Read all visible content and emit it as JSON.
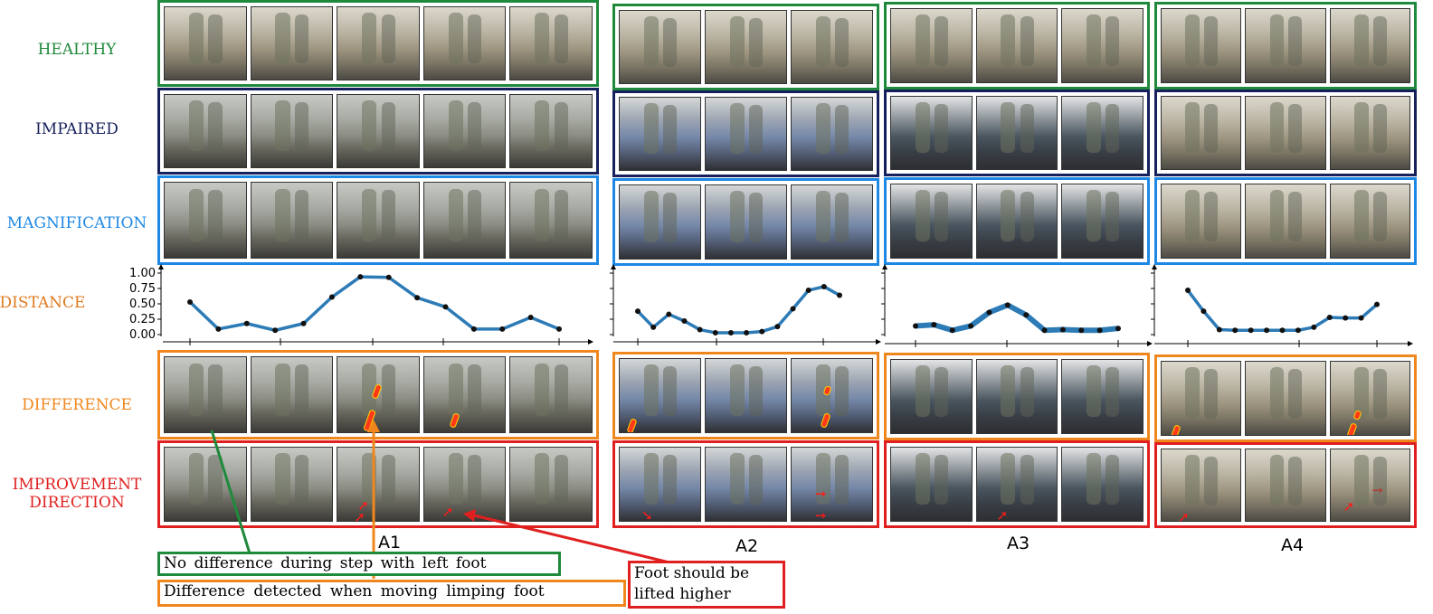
{
  "row_labels": {
    "healthy": "HEALTHY",
    "impaired": "IMPAIRED",
    "magnification": "MAGNIFICATION",
    "distance": "DISTANCE",
    "difference": "DIFFERENCE",
    "improvement": "IMPROVEMENT\nDIRECTION"
  },
  "colors": {
    "healthy": "#1f8a3c",
    "impaired": "#16205c",
    "magnification": "#1e88e5",
    "distance": "#e07a1f",
    "difference": "#f0871e",
    "improvement": "#e02020",
    "curve": "#2c7bb6"
  },
  "columns": [
    {
      "id": "A1",
      "label": "A1"
    },
    {
      "id": "A2",
      "label": "A2"
    },
    {
      "id": "A3",
      "label": "A3"
    },
    {
      "id": "A4",
      "label": "A4"
    }
  ],
  "y_ticks": [
    "1.00",
    "0.75",
    "0.50",
    "0.25",
    "0.00"
  ],
  "notes": {
    "no_difference": "No difference during step with left foot",
    "difference_detected": "Difference detected when moving limping foot",
    "foot_lifted_line1": "Foot should be",
    "foot_lifted_line2": "lifted higher"
  },
  "chart_data": [
    {
      "type": "line",
      "name": "A1",
      "ylim": [
        0,
        1
      ],
      "values": [
        0.53,
        0.09,
        0.18,
        0.07,
        0.18,
        0.61,
        0.94,
        0.93,
        0.6,
        0.45,
        0.09,
        0.09,
        0.28,
        0.09
      ]
    },
    {
      "type": "line",
      "name": "A2",
      "ylim": [
        0,
        1
      ],
      "values": [
        0.38,
        0.12,
        0.33,
        0.22,
        0.08,
        0.03,
        0.03,
        0.03,
        0.05,
        0.13,
        0.42,
        0.72,
        0.78,
        0.64
      ]
    },
    {
      "type": "line",
      "name": "A3",
      "ylim": [
        0,
        1
      ],
      "values": [
        0.14,
        0.16,
        0.07,
        0.14,
        0.36,
        0.48,
        0.32,
        0.07,
        0.08,
        0.07,
        0.07,
        0.1
      ]
    },
    {
      "type": "line",
      "name": "A4",
      "ylim": [
        0,
        1
      ],
      "values": [
        0.72,
        0.38,
        0.08,
        0.07,
        0.07,
        0.07,
        0.07,
        0.07,
        0.12,
        0.28,
        0.27,
        0.27,
        0.49
      ]
    }
  ]
}
